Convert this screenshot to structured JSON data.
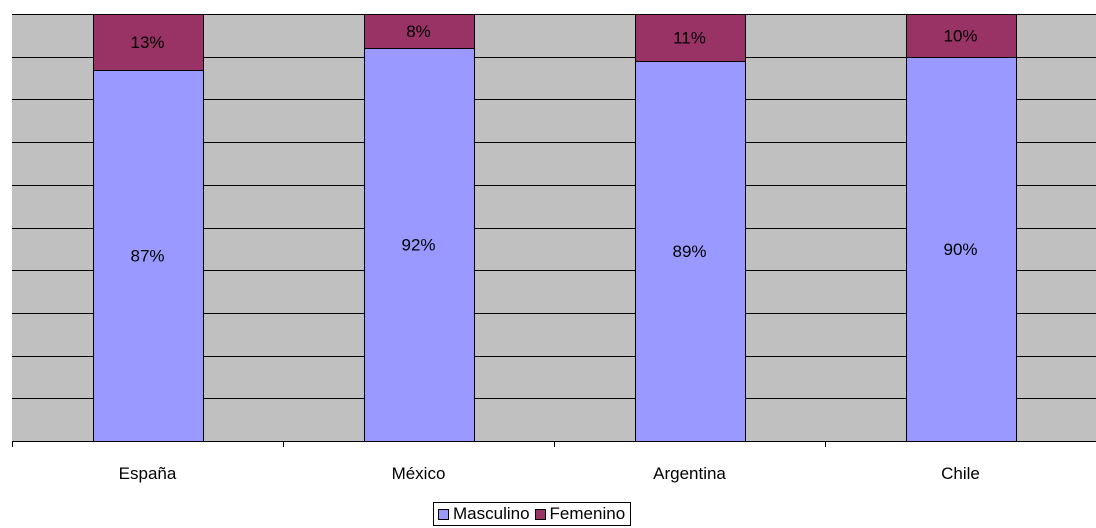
{
  "chart_data": {
    "type": "bar",
    "stacked": true,
    "percent_stacked": true,
    "categories": [
      "España",
      "México",
      "Argentina",
      "Chile"
    ],
    "series": [
      {
        "name": "Masculino",
        "values": [
          87,
          92,
          89,
          90
        ],
        "labels": [
          "87%",
          "92%",
          "89%",
          "90%"
        ],
        "color": "#9999ff"
      },
      {
        "name": "Femenino",
        "values": [
          13,
          8,
          11,
          10
        ],
        "labels": [
          "13%",
          "8%",
          "11%",
          "10%"
        ],
        "color": "#993366"
      }
    ],
    "ylim": [
      0,
      100
    ],
    "grid": true,
    "plot_background": "#c0c0c0",
    "legend_position": "bottom"
  }
}
